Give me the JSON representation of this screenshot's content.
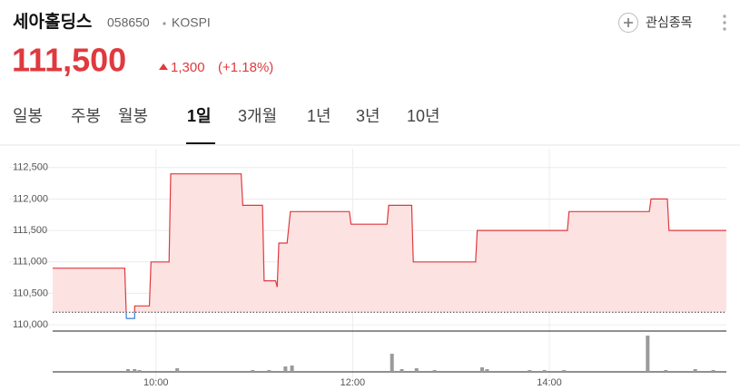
{
  "header": {
    "name": "세아홀딩스",
    "code": "058650",
    "market": "KOSPI",
    "watch_label": "관심종목"
  },
  "price": {
    "value": "111,500",
    "change": "1,300",
    "change_pct": "(+1.18%)"
  },
  "tabs": [
    "일봉",
    "주봉",
    "월봉",
    "1일",
    "3개월",
    "1년",
    "3년",
    "10년"
  ],
  "active_tab": 3,
  "chart_data": {
    "type": "line",
    "x": [
      537,
      581,
      582,
      587,
      587,
      596,
      597,
      608,
      609,
      652,
      653,
      665,
      666,
      673,
      674,
      675,
      680,
      682,
      718,
      719,
      741,
      742,
      756,
      757,
      795,
      796,
      851,
      852,
      901,
      902,
      912,
      913,
      948
    ],
    "values": [
      110900,
      110900,
      110100,
      110100,
      110300,
      110300,
      111000,
      111000,
      112400,
      112400,
      111900,
      111900,
      110700,
      110700,
      110600,
      111300,
      111300,
      111800,
      111800,
      111600,
      111600,
      111900,
      111900,
      111000,
      111000,
      111500,
      111500,
      111800,
      111800,
      112000,
      112000,
      111500,
      111500
    ],
    "color": "#e0393e",
    "fill": "#fde2e2",
    "down_color": "#3d7fd9",
    "baseline": 110200,
    "xlim": [
      537,
      948
    ],
    "ylim": [
      109900,
      112800
    ],
    "xticks": [
      {
        "value": 600,
        "label": "10:00"
      },
      {
        "value": 720,
        "label": "12:00"
      },
      {
        "value": 840,
        "label": "14:00"
      }
    ],
    "yticks": [
      {
        "value": 110000,
        "label": "110,000"
      },
      {
        "value": 110500,
        "label": "110,500"
      },
      {
        "value": 111000,
        "label": "111,000"
      },
      {
        "value": 111500,
        "label": "111,500"
      },
      {
        "value": 112000,
        "label": "112,000"
      },
      {
        "value": 112500,
        "label": "112,500"
      }
    ],
    "grid": true,
    "volume": {
      "x": [
        583,
        587,
        590,
        613,
        659,
        669,
        679,
        683,
        744,
        750,
        759,
        770,
        799,
        802,
        828,
        837,
        849,
        900,
        911,
        929,
        940
      ],
      "values": [
        3,
        3,
        2,
        4,
        2,
        2,
        6,
        7,
        20,
        3,
        4,
        2,
        5,
        3,
        2,
        2,
        2,
        40,
        2,
        3,
        2
      ],
      "vlim": [
        0,
        45
      ],
      "color": "#9a9a9a"
    }
  }
}
